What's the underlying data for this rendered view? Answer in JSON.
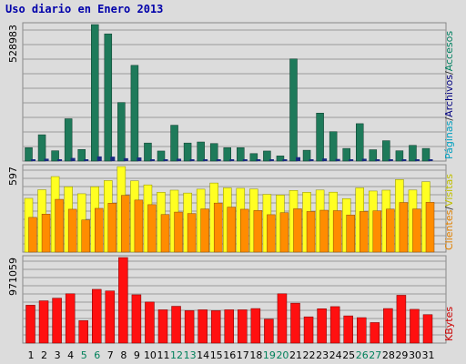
{
  "title": "Uso diario en Enero 2013",
  "chart_data": {
    "type": "bar",
    "title": "Uso diario en Enero 2013",
    "categories": [
      "1",
      "2",
      "3",
      "4",
      "5",
      "6",
      "7",
      "8",
      "9",
      "10",
      "11",
      "12",
      "13",
      "14",
      "15",
      "16",
      "17",
      "18",
      "19",
      "20",
      "21",
      "22",
      "23",
      "24",
      "25",
      "26",
      "27",
      "28",
      "29",
      "30",
      "31"
    ],
    "weekend_days": [
      "5",
      "6",
      "12",
      "13",
      "19",
      "20",
      "26",
      "27"
    ],
    "panels": [
      {
        "name": "paginas",
        "ymax_label": "528983",
        "ymax": 528983,
        "right_label_parts": [
          {
            "text": "Páginas",
            "color": "#00a0c0"
          },
          {
            "text": "/",
            "color": "#333333"
          },
          {
            "text": "Archivos",
            "color": "#000080"
          },
          {
            "text": "/",
            "color": "#333333"
          },
          {
            "text": "Accesos",
            "color": "#008060"
          }
        ],
        "series": [
          {
            "name": "Accesos",
            "color": "#1e7a5a",
            "values": [
              52000,
              102000,
              40000,
              164000,
              45000,
              528983,
              493000,
              227000,
              371000,
              70000,
              39000,
              139000,
              70000,
              74000,
              68000,
              52000,
              52000,
              29000,
              39000,
              20000,
              396000,
              42000,
              186000,
              114000,
              49000,
              145000,
              44000,
              79000,
              40000,
              61000,
              49000
            ]
          },
          {
            "name": "Archivos",
            "color": "#1a2a80",
            "values": [
              5000,
              9000,
              4000,
              12000,
              4000,
              18000,
              17000,
              11000,
              14000,
              6000,
              4000,
              9000,
              6000,
              6000,
              6000,
              5000,
              5000,
              3000,
              4000,
              3000,
              15000,
              4000,
              10000,
              8000,
              5000,
              9000,
              4000,
              6000,
              4000,
              5000,
              4000
            ]
          }
        ]
      },
      {
        "name": "clientes",
        "ymax_label": "597",
        "ymax": 597,
        "right_label_parts": [
          {
            "text": "Clientes",
            "color": "#e08000"
          },
          {
            "text": "/",
            "color": "#333333"
          },
          {
            "text": "Visitas",
            "color": "#c0c000"
          }
        ],
        "series": [
          {
            "name": "Visitas",
            "color": "#ffff22",
            "values": [
              375,
              435,
              527,
              456,
              407,
              456,
              499,
              597,
              497,
              469,
              417,
              432,
              412,
              439,
              482,
              448,
              445,
              440,
              403,
              398,
              430,
              417,
              433,
              418,
              373,
              448,
              426,
              432,
              506,
              433,
              491
            ]
          },
          {
            "name": "Clientes",
            "color": "#ff8c00",
            "values": [
              242,
              265,
              368,
              299,
              224,
              305,
              341,
              396,
              363,
              331,
              262,
              279,
              269,
              301,
              342,
              314,
              299,
              290,
              261,
              275,
              302,
              283,
              292,
              289,
              259,
              283,
              288,
              300,
              346,
              301,
              347
            ]
          }
        ]
      },
      {
        "name": "kbytes",
        "ymax_label": "971059",
        "ymax": 971059,
        "right_label_parts": [
          {
            "text": "KBytes",
            "color": "#cc0000"
          }
        ],
        "series": [
          {
            "name": "KBytes",
            "color": "#ff1010",
            "values": [
              430000,
              480000,
              510000,
              560000,
              255000,
              610000,
              592000,
              971059,
              548000,
              466000,
              378000,
              418000,
              368000,
              378000,
              368000,
              378000,
              378000,
              392000,
              272000,
              560000,
              453000,
              298000,
              390000,
              414000,
              309000,
              289000,
              233000,
              392000,
              543000,
              383000,
              323000
            ]
          }
        ]
      }
    ]
  }
}
